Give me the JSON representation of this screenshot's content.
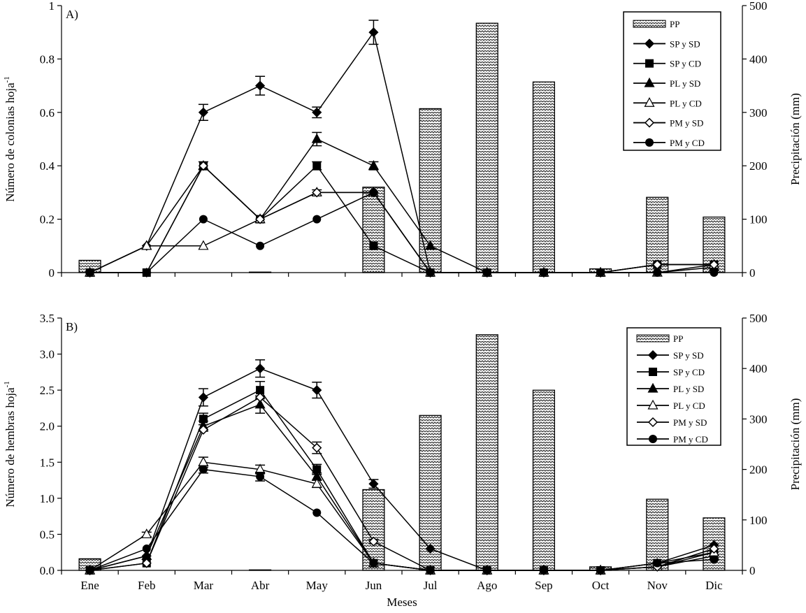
{
  "chart_data": [
    {
      "type": "bar+line",
      "panel_label": "A)",
      "categories": [
        "Ene",
        "Feb",
        "Mar",
        "Abr",
        "May",
        "Jun",
        "Jul",
        "Ago",
        "Sep",
        "Oct",
        "Nov",
        "Dic"
      ],
      "ylabel": "Número de colonias hoja",
      "ylabel_sup": "-1",
      "y2label": "Precipitación (mm)",
      "ylim": [
        0,
        1
      ],
      "y_ticks": [
        "0",
        "0.2",
        "0.4",
        "0.6",
        "0.8",
        "1"
      ],
      "y2lim": [
        0,
        500
      ],
      "y2_ticks": [
        "0",
        "100",
        "200",
        "300",
        "400",
        "500"
      ],
      "legend_position": "top-right",
      "bars": {
        "name": "PP",
        "values": [
          23,
          0,
          0,
          1,
          0,
          160,
          307,
          467,
          357,
          7,
          141,
          104
        ]
      },
      "series": [
        {
          "name": "SP y SD",
          "marker": "diamond",
          "values": [
            0,
            0.1,
            0.6,
            0.7,
            0.6,
            0.9,
            0,
            0,
            0,
            0,
            0.03,
            0.03
          ],
          "errors": [
            0,
            0,
            0.03,
            0.035,
            0.02,
            0.045,
            0,
            0,
            0,
            0,
            0,
            0
          ]
        },
        {
          "name": "SP y CD",
          "marker": "square",
          "values": [
            0,
            0,
            0.4,
            0.2,
            0.4,
            0.1,
            0,
            0,
            0,
            0,
            0.03,
            0.03
          ],
          "errors": [
            0,
            0,
            0.015,
            0,
            0.015,
            0,
            0,
            0,
            0,
            0,
            0,
            0
          ]
        },
        {
          "name": "PL y SD",
          "marker": "triangle",
          "values": [
            0,
            0.1,
            0.4,
            0.2,
            0.5,
            0.4,
            0.1,
            0,
            0,
            0,
            0,
            0.02
          ],
          "errors": [
            0,
            0,
            0,
            0,
            0.025,
            0.015,
            0,
            0,
            0,
            0,
            0,
            0
          ]
        },
        {
          "name": "PL y CD",
          "marker": "triangle-open",
          "values": [
            0,
            0.1,
            0.1,
            0.2,
            0.3,
            0.3,
            0,
            0,
            0,
            0,
            0,
            0.03
          ],
          "errors": [
            0,
            0,
            0,
            0,
            0.01,
            0,
            0,
            0,
            0,
            0,
            0,
            0
          ]
        },
        {
          "name": "PM y SD",
          "marker": "diamond-open",
          "values": [
            0,
            0,
            0.4,
            0.2,
            0.3,
            0.3,
            0,
            0,
            0,
            0,
            0.03,
            0.03
          ],
          "errors": [
            0,
            0,
            0,
            0,
            0,
            0,
            0,
            0,
            0,
            0,
            0,
            0
          ]
        },
        {
          "name": "PM y CD",
          "marker": "circle",
          "values": [
            0,
            0,
            0.2,
            0.1,
            0.2,
            0.3,
            0,
            0,
            0,
            0,
            0,
            0
          ],
          "errors": [
            0,
            0,
            0,
            0,
            0,
            0,
            0,
            0,
            0,
            0,
            0,
            0
          ]
        }
      ]
    },
    {
      "type": "bar+line",
      "panel_label": "B)",
      "categories": [
        "Ene",
        "Feb",
        "Mar",
        "Abr",
        "May",
        "Jun",
        "Jul",
        "Ago",
        "Sep",
        "Oct",
        "Nov",
        "Dic"
      ],
      "xlabel": "Meses",
      "ylabel": "Número de hembras hoja",
      "ylabel_sup": "-1",
      "y2label": "Precipitación (mm)",
      "ylim": [
        0,
        3.5
      ],
      "y_ticks": [
        "0.0",
        "0.5",
        "1.0",
        "1.5",
        "2.0",
        "2.5",
        "3.0",
        "3.5"
      ],
      "y2lim": [
        0,
        500
      ],
      "y2_ticks": [
        "0",
        "100",
        "200",
        "300",
        "400",
        "500"
      ],
      "legend_position": "top-right",
      "bars": {
        "name": "PP",
        "values": [
          23,
          0,
          0,
          1,
          0,
          160,
          307,
          467,
          357,
          7,
          141,
          104
        ]
      },
      "series": [
        {
          "name": "SP y SD",
          "marker": "diamond",
          "values": [
            0,
            0.2,
            2.4,
            2.8,
            2.5,
            1.2,
            0.3,
            0,
            0,
            0,
            0.1,
            0.35
          ],
          "errors": [
            0,
            0,
            0.12,
            0.12,
            0.11,
            0.06,
            0,
            0,
            0,
            0,
            0,
            0
          ]
        },
        {
          "name": "SP y CD",
          "marker": "square",
          "values": [
            0,
            0.1,
            2.1,
            2.5,
            1.4,
            0.1,
            0,
            0,
            0,
            0,
            0.1,
            0.25
          ],
          "errors": [
            0,
            0,
            0.08,
            0.12,
            0.07,
            0,
            0,
            0,
            0,
            0,
            0,
            0
          ]
        },
        {
          "name": "PL y SD",
          "marker": "triangle",
          "values": [
            0,
            0.2,
            2.0,
            2.3,
            1.3,
            0.1,
            0,
            0,
            0,
            0,
            0.05,
            0.2
          ],
          "errors": [
            0,
            0,
            0.07,
            0.12,
            0.05,
            0,
            0,
            0,
            0,
            0,
            0,
            0
          ]
        },
        {
          "name": "PL y CD",
          "marker": "triangle-open",
          "values": [
            0,
            0.5,
            1.5,
            1.4,
            1.2,
            0.1,
            0,
            0,
            0,
            0,
            0.05,
            0.25
          ],
          "errors": [
            0,
            0.03,
            0.07,
            0.06,
            0.05,
            0,
            0,
            0,
            0,
            0,
            0,
            0
          ]
        },
        {
          "name": "PM y SD",
          "marker": "diamond-open",
          "values": [
            0,
            0.1,
            1.95,
            2.4,
            1.7,
            0.4,
            0,
            0,
            0,
            0,
            0.05,
            0.3
          ],
          "errors": [
            0,
            0,
            0,
            0,
            0.08,
            0.03,
            0,
            0,
            0,
            0,
            0,
            0
          ]
        },
        {
          "name": "PM y CD",
          "marker": "circle",
          "values": [
            0,
            0.3,
            1.4,
            1.3,
            0.8,
            0.1,
            0,
            0,
            0,
            0,
            0.1,
            0.15
          ],
          "errors": [
            0,
            0,
            0.05,
            0.06,
            0,
            0,
            0,
            0,
            0,
            0,
            0,
            0
          ]
        }
      ]
    }
  ]
}
